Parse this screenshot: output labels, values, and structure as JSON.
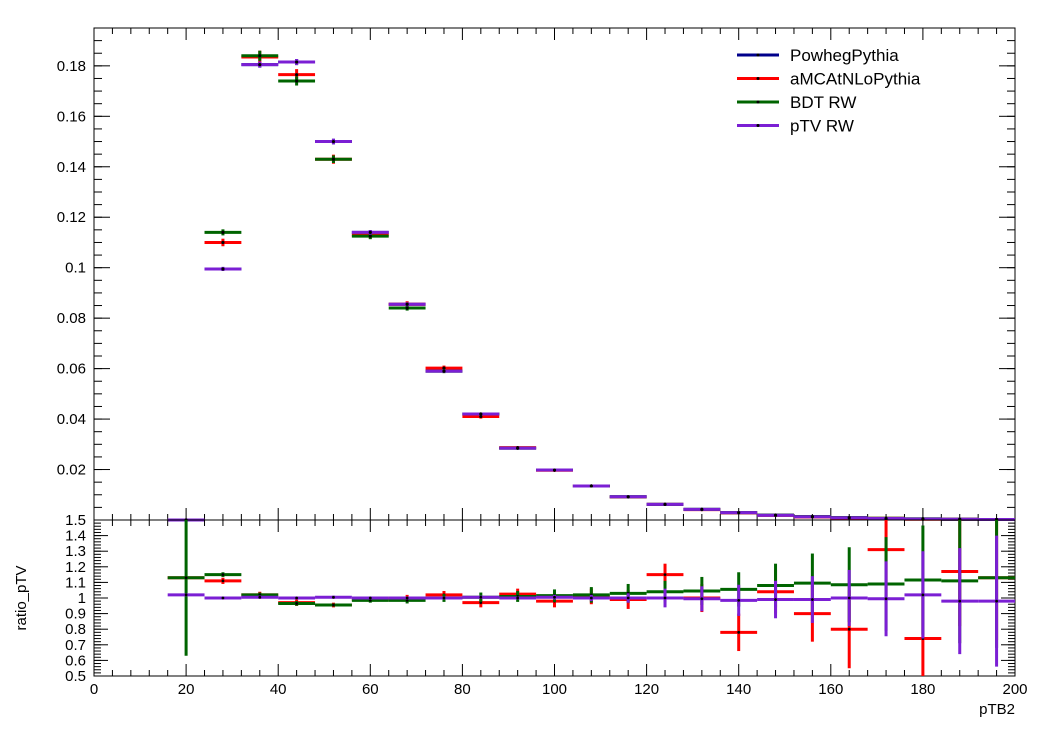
{
  "chart_data": [
    {
      "type": "line",
      "title": "",
      "xlabel": "",
      "ylabel": "",
      "xlim": [
        0,
        200
      ],
      "ylim": [
        0,
        0.195
      ],
      "y_ticks": [
        "0.02",
        "0.04",
        "0.06",
        "0.08",
        "0.1",
        "0.12",
        "0.14",
        "0.16",
        "0.18"
      ],
      "legend_position": "top-right",
      "bin_width": 8,
      "x": [
        20,
        28,
        36,
        44,
        52,
        60,
        68,
        76,
        84,
        92,
        100,
        108,
        116,
        124,
        132,
        140,
        148,
        156,
        164,
        172,
        180,
        188,
        196
      ],
      "series": [
        {
          "name": "PowhegPythia",
          "color": "#00008b",
          "values": [
            0.0,
            0.0995,
            0.1805,
            0.1815,
            0.15,
            0.114,
            0.0855,
            0.059,
            0.042,
            0.0285,
            0.0198,
            0.0135,
            0.0092,
            0.0062,
            0.0042,
            0.0029,
            0.0019,
            0.0013,
            0.0009,
            0.0006,
            0.0004,
            0.0003,
            0.0002
          ],
          "errors": [
            0.0,
            0.0008,
            0.0012,
            0.0012,
            0.0011,
            0.0009,
            0.0008,
            0.0006,
            0.0005,
            0.0004,
            0.0003,
            0.0003,
            0.0002,
            0.0002,
            0.0002,
            0.0001,
            0.0001,
            0.0001,
            0.0001,
            0.0001,
            0.0001,
            0.0001,
            0.0001
          ]
        },
        {
          "name": "aMCAtNLoPythia",
          "color": "#ff0000",
          "values": [
            0.0,
            0.11,
            0.1835,
            0.1765,
            0.143,
            0.113,
            0.0855,
            0.0602,
            0.041,
            0.0287,
            0.0197,
            0.0135,
            0.0091,
            0.0062,
            0.0041,
            0.0028,
            0.0019,
            0.0012,
            0.0008,
            0.0007,
            0.0003,
            0.0003,
            0.0002
          ],
          "errors": [
            0.0,
            0.0015,
            0.0025,
            0.0022,
            0.0018,
            0.0015,
            0.0012,
            0.001,
            0.0008,
            0.0006,
            0.0005,
            0.0004,
            0.0003,
            0.0003,
            0.0002,
            0.0002,
            0.0002,
            0.0001,
            0.0001,
            0.0001,
            0.0001,
            0.0001,
            0.0001
          ]
        },
        {
          "name": "BDT RW",
          "color": "#006400",
          "values": [
            0.0,
            0.114,
            0.184,
            0.174,
            0.143,
            0.1125,
            0.084,
            0.059,
            0.042,
            0.0285,
            0.0198,
            0.0135,
            0.0092,
            0.0062,
            0.0042,
            0.0029,
            0.002,
            0.0014,
            0.001,
            0.0007,
            0.0005,
            0.0003,
            0.0002
          ],
          "errors": [
            0.0,
            0.0012,
            0.002,
            0.0018,
            0.0015,
            0.0012,
            0.001,
            0.0008,
            0.0006,
            0.0005,
            0.0004,
            0.0003,
            0.0003,
            0.0002,
            0.0002,
            0.0002,
            0.0001,
            0.0001,
            0.0001,
            0.0001,
            0.0001,
            0.0001,
            0.0001
          ]
        },
        {
          "name": "pTV RW",
          "color": "#7b1fd4",
          "values": [
            0.0,
            0.0995,
            0.1805,
            0.1815,
            0.15,
            0.114,
            0.0855,
            0.059,
            0.042,
            0.0285,
            0.0198,
            0.0135,
            0.0092,
            0.0062,
            0.0042,
            0.0029,
            0.0019,
            0.0013,
            0.0009,
            0.0006,
            0.0004,
            0.0003,
            0.0002
          ],
          "errors": [
            0.0,
            0.0008,
            0.0012,
            0.0012,
            0.0011,
            0.0009,
            0.0008,
            0.0006,
            0.0005,
            0.0004,
            0.0003,
            0.0003,
            0.0002,
            0.0002,
            0.0002,
            0.0001,
            0.0001,
            0.0001,
            0.0001,
            0.0001,
            0.0001,
            0.0001,
            0.0001
          ]
        }
      ]
    },
    {
      "type": "line",
      "title": "",
      "xlabel": "pTB2",
      "ylabel": "ratio_pTV",
      "xlim": [
        0,
        200
      ],
      "ylim": [
        0.5,
        1.5
      ],
      "x_ticks": [
        "0",
        "20",
        "40",
        "60",
        "80",
        "100",
        "120",
        "140",
        "160",
        "180",
        "200"
      ],
      "y_ticks": [
        "0.5",
        "0.6",
        "0.7",
        "0.8",
        "0.9",
        "1",
        "1.1",
        "1.2",
        "1.3",
        "1.4",
        "1.5"
      ],
      "bin_width": 8,
      "x": [
        20,
        28,
        36,
        44,
        52,
        60,
        68,
        76,
        84,
        92,
        100,
        108,
        116,
        124,
        132,
        140,
        148,
        156,
        164,
        172,
        180,
        188,
        196
      ],
      "series": [
        {
          "name": "aMCAtNLoPythia",
          "color": "#ff0000",
          "values": [
            1.13,
            1.11,
            1.02,
            0.97,
            0.955,
            0.99,
            1.0,
            1.02,
            0.97,
            1.025,
            0.98,
            1.01,
            0.99,
            1.15,
            1.0,
            0.78,
            1.04,
            0.9,
            0.8,
            1.31,
            0.74,
            1.17,
            1.13
          ],
          "errors": [
            0.0,
            0.02,
            0.02,
            0.02,
            0.015,
            0.015,
            0.02,
            0.025,
            0.03,
            0.035,
            0.04,
            0.05,
            0.06,
            0.07,
            0.09,
            0.12,
            0.14,
            0.18,
            0.25,
            0.3,
            0.3,
            0.35,
            0.4
          ]
        },
        {
          "name": "BDT RW",
          "color": "#006400",
          "values": [
            1.13,
            1.15,
            1.02,
            0.965,
            0.955,
            0.985,
            0.985,
            1.0,
            1.005,
            1.01,
            1.015,
            1.02,
            1.03,
            1.04,
            1.045,
            1.055,
            1.08,
            1.095,
            1.085,
            1.09,
            1.115,
            1.11,
            1.13
          ],
          "errors": [
            0.5,
            0.015,
            0.015,
            0.015,
            0.01,
            0.015,
            0.02,
            0.025,
            0.03,
            0.035,
            0.04,
            0.05,
            0.06,
            0.07,
            0.09,
            0.11,
            0.14,
            0.19,
            0.24,
            0.3,
            0.35,
            0.4,
            0.45
          ]
        },
        {
          "name": "pTV RW",
          "color": "#7b1fd4",
          "values": [
            1.02,
            1.0,
            1.005,
            1.0,
            1.005,
            1.0,
            1.0,
            1.0,
            1.005,
            1.0,
            1.005,
            1.0,
            1.0,
            1.0,
            0.995,
            0.985,
            0.99,
            0.99,
            1.0,
            0.995,
            1.02,
            0.98,
            0.98
          ],
          "errors": [
            0.0,
            0.01,
            0.01,
            0.01,
            0.01,
            0.01,
            0.01,
            0.01,
            0.01,
            0.01,
            0.015,
            0.02,
            0.03,
            0.06,
            0.08,
            0.1,
            0.12,
            0.15,
            0.18,
            0.24,
            0.28,
            0.34,
            0.42
          ]
        }
      ]
    }
  ]
}
